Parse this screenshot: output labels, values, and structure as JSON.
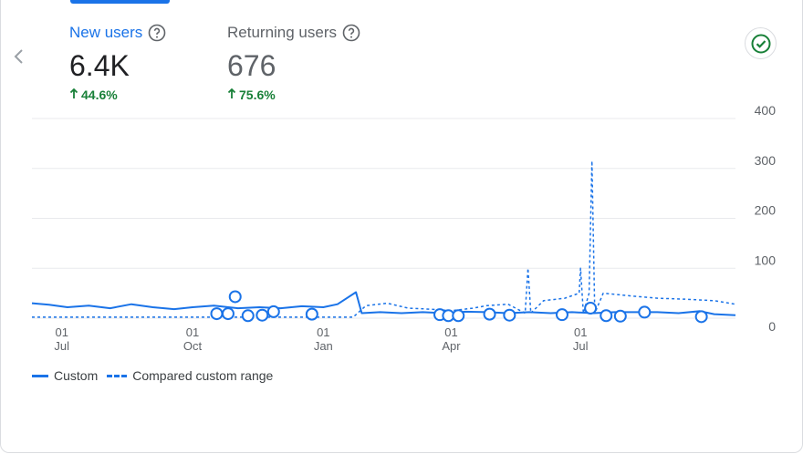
{
  "metrics": {
    "new_users": {
      "label": "New users",
      "value": "6.4K",
      "delta": "44.6%"
    },
    "returning_users": {
      "label": "Returning users",
      "value": "676",
      "delta": "75.6%"
    }
  },
  "icons": {
    "prev": "chevron-left-icon",
    "help": "help-circle-icon",
    "status": "check-circle-icon",
    "delta": "arrow-up-icon"
  },
  "colors": {
    "accent": "#1a73e8",
    "positive": "#188038",
    "grid": "#e8eaed",
    "muted": "#5f6368"
  },
  "chart_data": {
    "type": "line",
    "ylim": [
      0,
      400
    ],
    "y_ticks": [
      "0",
      "100",
      "200",
      "300",
      "400"
    ],
    "x_ticks": [
      {
        "day": "01",
        "month": "Jul",
        "x": 21
      },
      {
        "day": "01",
        "month": "Oct",
        "x": 113
      },
      {
        "day": "01",
        "month": "Jan",
        "x": 205
      },
      {
        "day": "01",
        "month": "Apr",
        "x": 295
      },
      {
        "day": "01",
        "month": "Jul",
        "x": 386
      }
    ],
    "x_range": [
      0,
      495
    ],
    "grid": true,
    "legend_position": "bottom-left",
    "series": [
      {
        "name": "Custom",
        "style": "solid",
        "points": [
          [
            0,
            30
          ],
          [
            12,
            27
          ],
          [
            25,
            22
          ],
          [
            40,
            25
          ],
          [
            55,
            20
          ],
          [
            70,
            28
          ],
          [
            85,
            22
          ],
          [
            100,
            18
          ],
          [
            113,
            22
          ],
          [
            128,
            25
          ],
          [
            145,
            20
          ],
          [
            160,
            22
          ],
          [
            175,
            20
          ],
          [
            190,
            24
          ],
          [
            205,
            22
          ],
          [
            215,
            28
          ],
          [
            228,
            52
          ],
          [
            232,
            10
          ],
          [
            245,
            12
          ],
          [
            260,
            10
          ],
          [
            275,
            12
          ],
          [
            290,
            10
          ],
          [
            305,
            13
          ],
          [
            320,
            12
          ],
          [
            335,
            10
          ],
          [
            350,
            12
          ],
          [
            365,
            10
          ],
          [
            380,
            12
          ],
          [
            395,
            10
          ],
          [
            410,
            12
          ],
          [
            425,
            12
          ],
          [
            440,
            12
          ],
          [
            455,
            10
          ],
          [
            470,
            14
          ],
          [
            480,
            8
          ],
          [
            495,
            6
          ]
        ]
      },
      {
        "name": "Compared custom range",
        "style": "dashed",
        "points": [
          [
            0,
            2
          ],
          [
            50,
            2
          ],
          [
            100,
            2
          ],
          [
            150,
            2
          ],
          [
            200,
            2
          ],
          [
            226,
            2
          ],
          [
            235,
            25
          ],
          [
            250,
            30
          ],
          [
            265,
            20
          ],
          [
            280,
            18
          ],
          [
            295,
            15
          ],
          [
            310,
            20
          ],
          [
            320,
            25
          ],
          [
            335,
            28
          ],
          [
            347,
            10
          ],
          [
            349,
            100
          ],
          [
            351,
            10
          ],
          [
            360,
            35
          ],
          [
            375,
            40
          ],
          [
            385,
            50
          ],
          [
            386,
            100
          ],
          [
            388,
            10
          ],
          [
            392,
            50
          ],
          [
            394,
            315
          ],
          [
            396,
            10
          ],
          [
            402,
            50
          ],
          [
            420,
            45
          ],
          [
            440,
            40
          ],
          [
            460,
            38
          ],
          [
            480,
            35
          ],
          [
            495,
            28
          ]
        ]
      }
    ],
    "annotations": [
      {
        "x": 130,
        "y": 9
      },
      {
        "x": 138,
        "y": 9
      },
      {
        "x": 143,
        "y": 43
      },
      {
        "x": 152,
        "y": 5
      },
      {
        "x": 162,
        "y": 6
      },
      {
        "x": 170,
        "y": 13
      },
      {
        "x": 197,
        "y": 8
      },
      {
        "x": 287,
        "y": 7
      },
      {
        "x": 293,
        "y": 5
      },
      {
        "x": 300,
        "y": 5
      },
      {
        "x": 322,
        "y": 8
      },
      {
        "x": 336,
        "y": 6
      },
      {
        "x": 373,
        "y": 7
      },
      {
        "x": 393,
        "y": 20
      },
      {
        "x": 404,
        "y": 5
      },
      {
        "x": 414,
        "y": 4
      },
      {
        "x": 431,
        "y": 12
      },
      {
        "x": 471,
        "y": 3
      }
    ]
  },
  "legend": [
    {
      "label": "Custom",
      "style": "solid"
    },
    {
      "label": "Compared custom range",
      "style": "dashed"
    }
  ]
}
